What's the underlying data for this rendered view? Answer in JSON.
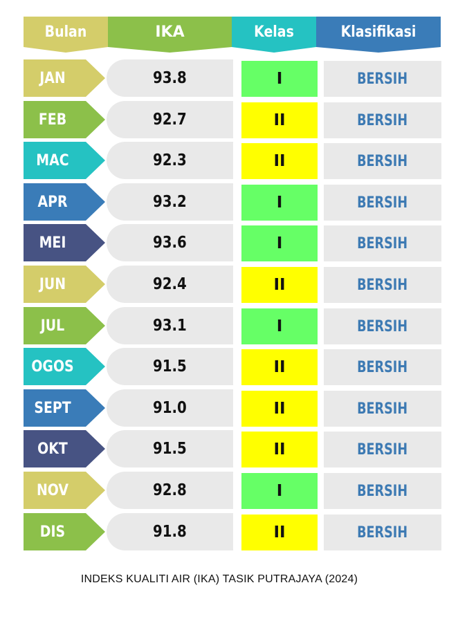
{
  "headers": {
    "bulan": "Bulan",
    "ika": "IKA",
    "kelas": "Kelas",
    "klasifikasi": "Klasifikasi"
  },
  "caption": "INDEKS KUALITI AIR (IKA) TASIK PUTRAJAYA (2024)",
  "colors": {
    "header_bulan": "#d4cd6a",
    "header_ika": "#8cc04a",
    "header_kelas": "#25c2c2",
    "header_klasifikasi": "#3a7cb8",
    "kelas_I": "#66ff66",
    "kelas_II": "#ffff00",
    "klasifikasi_text": "#3d7ab3",
    "cell_gray": "#e9e9e9"
  },
  "chart_data": {
    "type": "table",
    "title": "INDEKS KUALITI AIR (IKA) TASIK PUTRAJAYA (2024)",
    "columns": [
      "Bulan",
      "IKA",
      "Kelas",
      "Klasifikasi"
    ],
    "rows": [
      {
        "bulan": "JAN",
        "ika": "93.8",
        "kelas": "I",
        "klasifikasi": "BERSIH",
        "color": "#d4cd6a"
      },
      {
        "bulan": "FEB",
        "ika": "92.7",
        "kelas": "II",
        "klasifikasi": "BERSIH",
        "color": "#8cc04a"
      },
      {
        "bulan": "MAC",
        "ika": "92.3",
        "kelas": "II",
        "klasifikasi": "BERSIH",
        "color": "#25c2c2"
      },
      {
        "bulan": "APR",
        "ika": "93.2",
        "kelas": "I",
        "klasifikasi": "BERSIH",
        "color": "#3a7cb8"
      },
      {
        "bulan": "MEI",
        "ika": "93.6",
        "kelas": "I",
        "klasifikasi": "BERSIH",
        "color": "#475383"
      },
      {
        "bulan": "JUN",
        "ika": "92.4",
        "kelas": "II",
        "klasifikasi": "BERSIH",
        "color": "#d4cd6a"
      },
      {
        "bulan": "JUL",
        "ika": "93.1",
        "kelas": "I",
        "klasifikasi": "BERSIH",
        "color": "#8cc04a"
      },
      {
        "bulan": "OGOS",
        "ika": "91.5",
        "kelas": "II",
        "klasifikasi": "BERSIH",
        "color": "#25c2c2"
      },
      {
        "bulan": "SEPT",
        "ika": "91.0",
        "kelas": "II",
        "klasifikasi": "BERSIH",
        "color": "#3a7cb8"
      },
      {
        "bulan": "OKT",
        "ika": "91.5",
        "kelas": "II",
        "klasifikasi": "BERSIH",
        "color": "#475383"
      },
      {
        "bulan": "NOV",
        "ika": "92.8",
        "kelas": "I",
        "klasifikasi": "BERSIH",
        "color": "#d4cd6a"
      },
      {
        "bulan": "DIS",
        "ika": "91.8",
        "kelas": "II",
        "klasifikasi": "BERSIH",
        "color": "#8cc04a"
      }
    ]
  }
}
